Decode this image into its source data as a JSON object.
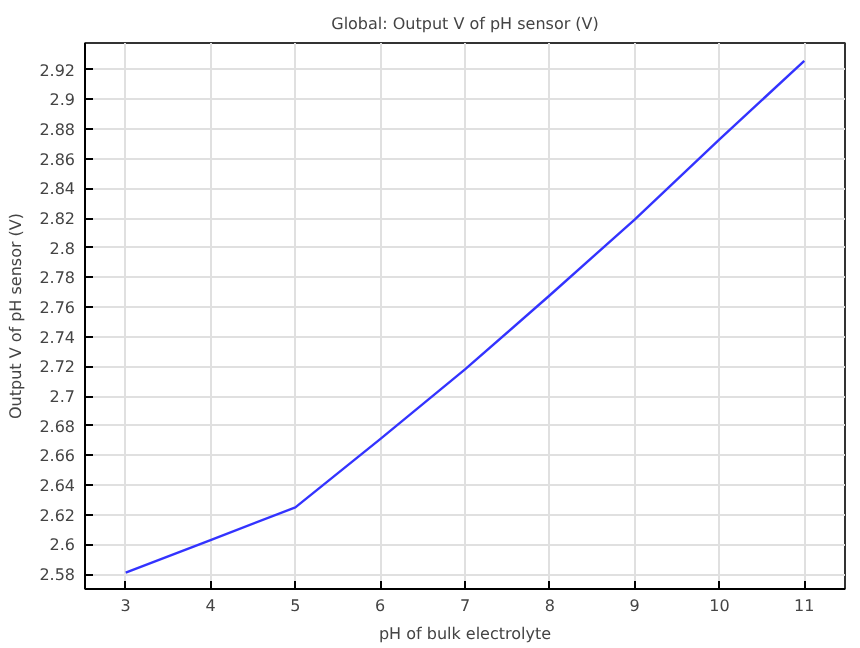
{
  "chart_data": {
    "type": "line",
    "title": "Global: Output V of pH sensor (V)",
    "xlabel": "pH of bulk electrolyte",
    "ylabel": "Output V of pH sensor (V)",
    "x": [
      3,
      4,
      5,
      6,
      7,
      8,
      9,
      10,
      11
    ],
    "series": [
      {
        "color": "#3333ff",
        "values": [
          2.581,
          2.603,
          2.625,
          2.671,
          2.718,
          2.768,
          2.819,
          2.873,
          2.926
        ]
      }
    ],
    "xlim": [
      2.52,
      11.48
    ],
    "ylim": [
      2.57,
      2.938
    ],
    "xticks": [
      3,
      4,
      5,
      6,
      7,
      8,
      9,
      10,
      11
    ],
    "yticks": [
      2.58,
      2.6,
      2.62,
      2.64,
      2.66,
      2.68,
      {
        "value": 2.7,
        "label": "2.7"
      },
      2.72,
      2.74,
      2.76,
      2.78,
      {
        "value": 2.8,
        "label": "2.8"
      },
      2.82,
      2.84,
      2.86,
      2.88,
      {
        "value": 2.9,
        "label": "2.9"
      },
      2.92
    ],
    "grid": true,
    "marker": "none",
    "line_style": "solid"
  }
}
